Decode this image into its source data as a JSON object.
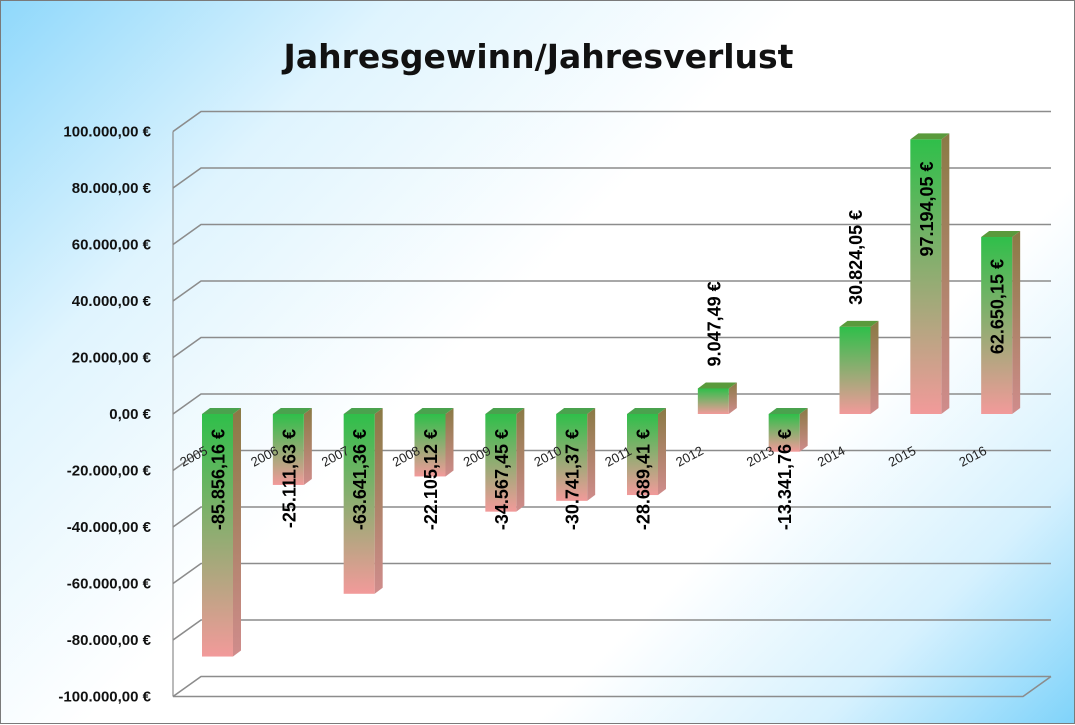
{
  "chart_data": {
    "type": "bar",
    "title": "Jahresgewinn/Jahresverlust",
    "categories": [
      "2005",
      "2006",
      "2007",
      "2008",
      "2009",
      "2010",
      "2011",
      "2012",
      "2013",
      "2014",
      "2015",
      "2016"
    ],
    "values": [
      -85856.16,
      -25111.63,
      -63641.36,
      -22105.12,
      -34567.45,
      -30741.37,
      -28689.41,
      9047.49,
      -13341.76,
      30824.05,
      97194.05,
      62650.15
    ],
    "data_labels": [
      "-85.856,16 €",
      "-25.111,63 €",
      "-63.641,36 €",
      "-22.105,12 €",
      "-34.567,45 €",
      "-30.741,37 €",
      "-28.689,41 €",
      "9.047,49 €",
      "-13.341,76 €",
      "30.824,05 €",
      "97.194,05 €",
      "62.650,15 €"
    ],
    "yticks": [
      100000,
      80000,
      60000,
      40000,
      20000,
      0,
      -20000,
      -40000,
      -60000,
      -80000,
      -100000
    ],
    "ytick_labels": [
      "100.000,00 €",
      "80.000,00 €",
      "60.000,00 €",
      "40.000,00 €",
      "20.000,00 €",
      "0,00 €",
      "-20.000,00 €",
      "-40.000,00 €",
      "-60.000,00 €",
      "-80.000,00 €",
      "-100.000,00 €"
    ],
    "ylim": [
      -100000,
      100000
    ],
    "grid": true,
    "legend": "none",
    "colors": {
      "bar_top": "#2fbf4a",
      "bar_bottom": "#f29a9a",
      "side_positive": "#9a7d52",
      "side_negative": "#c98a8a",
      "grid": "#8c8c8c"
    }
  }
}
